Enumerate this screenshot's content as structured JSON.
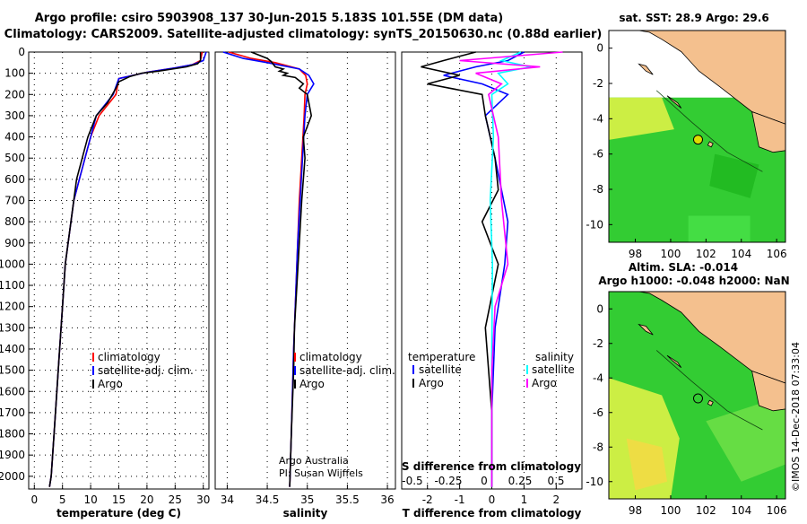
{
  "header": {
    "line1": "Argo profile: csiro 5903908_137 30-Jun-2015 5.183S 101.55E (DM data)",
    "line2": "Climatology: CARS2009. Satellite-adjusted climatology: synTS_20150630.nc (0.88d earlier)"
  },
  "credit": {
    "line1": "Argo Australia",
    "line2": "PI: Susan Wijffels",
    "watermark": "©IMOS 14-Dec-2018 07:33:04"
  },
  "colors": {
    "climatology": "#ff0000",
    "satellite": "#0000ff",
    "argo": "#000000",
    "salinity_satellite": "#00ffff",
    "salinity_argo": "#ff00ff",
    "land": "#f4c08e",
    "ocean_green": "#33cc33",
    "ocean_yellow": "#ccee44"
  },
  "chart_data": [
    {
      "type": "line",
      "name": "temperature-profile",
      "xlabel": "temperature (deg C)",
      "ylabel": "",
      "xlim": [
        -1,
        31
      ],
      "ylim": [
        2060,
        0
      ],
      "xticks": [
        0,
        5,
        10,
        15,
        20,
        25,
        30
      ],
      "yticks": [
        0,
        100,
        200,
        300,
        400,
        500,
        600,
        700,
        800,
        900,
        1000,
        1100,
        1200,
        1300,
        1400,
        1500,
        1600,
        1700,
        1800,
        1900,
        2000
      ],
      "ytick_labels": [
        "0",
        "100",
        "200",
        "300",
        "400",
        "500",
        "600",
        "700",
        "800",
        "900",
        "1000",
        "1100",
        "1200",
        "1300",
        "1400",
        "1500",
        "1600",
        "1700",
        "1800",
        "1900",
        "2000"
      ],
      "grid": true,
      "legend": {
        "position": "lower-right",
        "entries": [
          "climatology",
          "satellite-adj. clim.",
          "Argo"
        ]
      },
      "series": [
        {
          "name": "climatology",
          "color": "#ff0000",
          "x": [
            29.8,
            29.5,
            28,
            25,
            20,
            15,
            14.5,
            13,
            11.5,
            10,
            9,
            8,
            7,
            5.5,
            5,
            4.5,
            4,
            3.5,
            3,
            2.7
          ],
          "y": [
            0,
            40,
            60,
            75,
            95,
            125,
            200,
            250,
            300,
            400,
            500,
            600,
            700,
            1000,
            1200,
            1400,
            1600,
            1800,
            2000,
            2050
          ]
        },
        {
          "name": "satellite-adj. clim.",
          "color": "#0000ff",
          "x": [
            30.5,
            30,
            28,
            25,
            20,
            15,
            14,
            12.5,
            11,
            10,
            9,
            8,
            7,
            5.5,
            5,
            4.5,
            4,
            3.5,
            3,
            2.7
          ],
          "y": [
            0,
            40,
            60,
            75,
            95,
            125,
            200,
            250,
            300,
            400,
            500,
            600,
            700,
            1000,
            1200,
            1400,
            1600,
            1800,
            2000,
            2050
          ]
        },
        {
          "name": "Argo",
          "color": "#000000",
          "x": [
            29.5,
            29.5,
            29,
            27,
            22,
            19,
            17,
            15,
            14.5,
            13,
            11,
            9.5,
            8.5,
            7.5,
            5.5,
            5,
            4.5,
            4,
            3.5,
            3,
            2.7
          ],
          "y": [
            0,
            40,
            55,
            70,
            90,
            100,
            115,
            140,
            170,
            240,
            300,
            400,
            500,
            600,
            1000,
            1200,
            1400,
            1600,
            1800,
            2000,
            2050
          ]
        }
      ]
    },
    {
      "type": "line",
      "name": "salinity-profile",
      "xlabel": "salinity",
      "xlim": [
        33.85,
        36.1
      ],
      "ylim": [
        2060,
        0
      ],
      "xticks": [
        34,
        34.5,
        35,
        35.5,
        36
      ],
      "grid": true,
      "legend": {
        "position": "lower-right",
        "entries": [
          "climatology",
          "satellite-adj. clim.",
          "Argo"
        ]
      },
      "series": [
        {
          "name": "climatology",
          "color": "#ff0000",
          "x": [
            34.02,
            34.3,
            34.6,
            34.9,
            34.98,
            35.0,
            34.97,
            34.96,
            34.93,
            34.9,
            34.88,
            34.86,
            34.83,
            34.8,
            34.78
          ],
          "y": [
            0,
            30,
            50,
            80,
            110,
            150,
            200,
            300,
            500,
            700,
            900,
            1100,
            1400,
            1800,
            2050
          ]
        },
        {
          "name": "satellite-adj. clim.",
          "color": "#0000ff",
          "x": [
            33.95,
            34.2,
            34.5,
            34.9,
            35.02,
            35.08,
            35.0,
            34.97,
            34.94,
            34.91,
            34.88,
            34.86,
            34.83,
            34.8,
            34.78
          ],
          "y": [
            0,
            30,
            50,
            80,
            110,
            150,
            200,
            300,
            500,
            700,
            900,
            1100,
            1400,
            1800,
            2050
          ]
        },
        {
          "name": "Argo",
          "color": "#000000",
          "x": [
            34.3,
            34.5,
            34.55,
            34.6,
            34.7,
            34.65,
            34.75,
            34.7,
            34.85,
            34.95,
            34.9,
            35.0,
            35.05,
            34.95,
            34.97,
            34.93,
            34.9,
            34.87,
            34.84,
            34.83,
            34.8,
            34.78
          ],
          "y": [
            0,
            30,
            45,
            70,
            80,
            90,
            100,
            110,
            120,
            150,
            170,
            200,
            300,
            400,
            500,
            700,
            900,
            1100,
            1300,
            1500,
            1800,
            2050
          ]
        }
      ]
    },
    {
      "type": "line",
      "name": "difference-profile",
      "xlabel": "T difference from climatology",
      "secondary_xlabel": "S difference from climatology",
      "xlim": [
        -2.8,
        2.8
      ],
      "ylim": [
        2060,
        0
      ],
      "xticks": [
        -2,
        -1,
        0,
        1,
        2
      ],
      "secondary_xticks": [
        "-0.5",
        "-0.25",
        "0",
        "0.25",
        "0.5"
      ],
      "grid": true,
      "legend": {
        "temperature_title": "temperature",
        "salinity_title": "salinity",
        "entries": [
          "satellite",
          "Argo"
        ]
      },
      "series": [
        {
          "name": "temperature satellite",
          "color": "#0000ff",
          "x": [
            1.0,
            0.5,
            -0.5,
            -1.5,
            -0.3,
            0.5,
            -0.2,
            0.1,
            0.3,
            0.5,
            0.4,
            0.1,
            0,
            0
          ],
          "y": [
            0,
            40,
            70,
            110,
            150,
            200,
            300,
            500,
            650,
            800,
            1000,
            1300,
            1700,
            2050
          ]
        },
        {
          "name": "temperature Argo",
          "color": "#000000",
          "x": [
            -0.5,
            -1.5,
            -2.2,
            -1.0,
            -2.0,
            -0.3,
            -0.2,
            0.1,
            0.2,
            -0.3,
            0.2,
            -0.2,
            0,
            0
          ],
          "y": [
            0,
            40,
            70,
            110,
            150,
            200,
            300,
            500,
            650,
            800,
            1000,
            1300,
            1700,
            2050
          ]
        },
        {
          "name": "salinity satellite",
          "color": "#00ffff",
          "x": [
            0.9,
            0.3,
            1.2,
            0.2,
            0.5,
            0,
            0.05,
            -0.05,
            0.02,
            0,
            0,
            0
          ],
          "y": [
            0,
            40,
            70,
            100,
            150,
            200,
            400,
            700,
            1000,
            1400,
            1800,
            2050
          ]
        },
        {
          "name": "salinity Argo",
          "color": "#ff00ff",
          "x": [
            2.2,
            -1.0,
            1.5,
            -0.5,
            0.3,
            -0.1,
            0.2,
            0.3,
            0.5,
            0.1,
            0,
            0
          ],
          "y": [
            0,
            40,
            70,
            100,
            150,
            200,
            400,
            700,
            1000,
            1200,
            1500,
            2050
          ]
        }
      ]
    },
    {
      "type": "heatmap",
      "name": "sst-map",
      "title": "sat. SST: 28.9 Argo: 29.6",
      "xlim": [
        96.5,
        106.5
      ],
      "ylim": [
        -11,
        1
      ],
      "xticks": [
        98,
        100,
        102,
        104,
        106
      ],
      "yticks": [
        0,
        -2,
        -4,
        -6,
        -8,
        -10
      ],
      "marker": {
        "lon": 101.55,
        "lat": -5.183
      }
    },
    {
      "type": "heatmap",
      "name": "sla-map",
      "title_line1": "Altim. SLA: -0.014",
      "title_line2": "Argo h1000: -0.048 h2000: NaN",
      "xlim": [
        96.5,
        106.5
      ],
      "ylim": [
        -11,
        1
      ],
      "xticks": [
        98,
        100,
        102,
        104,
        106
      ],
      "yticks": [
        0,
        -2,
        -4,
        -6,
        -8,
        -10
      ],
      "marker": {
        "lon": 101.55,
        "lat": -5.183
      }
    }
  ]
}
